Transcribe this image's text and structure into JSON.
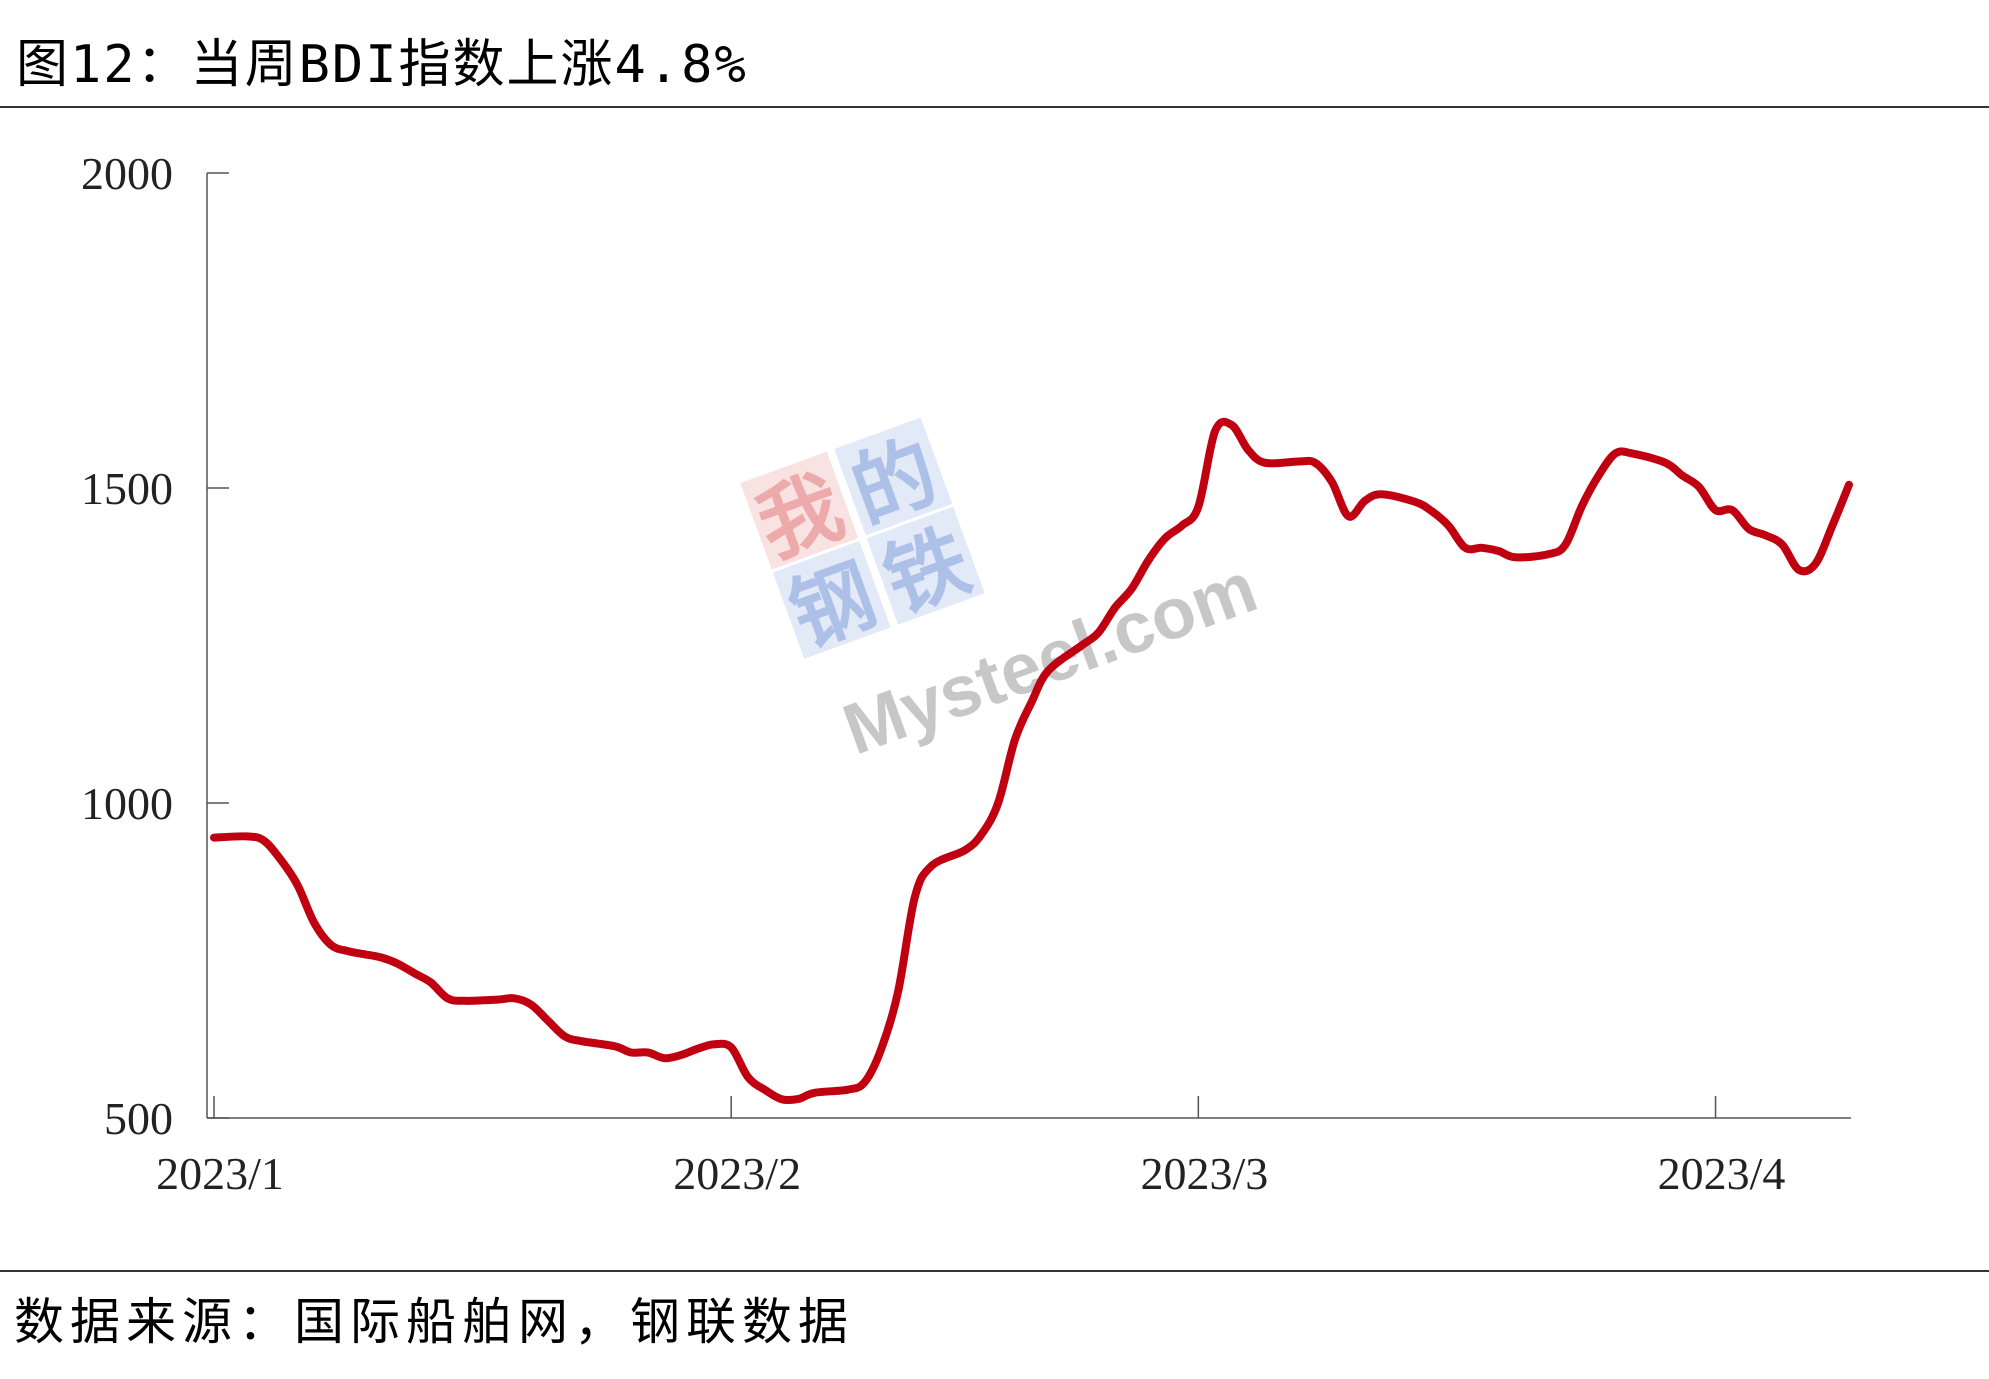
{
  "header": {
    "title": "图12：当周BDI指数上涨4.8%"
  },
  "footer": {
    "source": "数据来源：国际船舶网，钢联数据"
  },
  "watermark": {
    "chars": [
      "我",
      "的",
      "钢",
      "铁"
    ],
    "brand": "Mysteel.com",
    "colors": {
      "red": "#e06666",
      "blue": "#6b8ed6",
      "gray": "#9a9a9a"
    }
  },
  "colors": {
    "line": "#c00010",
    "axis": "#555555"
  },
  "chart_data": {
    "type": "line",
    "title": "",
    "xlabel": "",
    "ylabel": "",
    "ylim": [
      500,
      2000
    ],
    "yticks": [
      500,
      1000,
      1500,
      2000
    ],
    "xticks": [
      {
        "label": "2023/1",
        "date": "2023-01-01"
      },
      {
        "label": "2023/2",
        "date": "2023-02-01"
      },
      {
        "label": "2023/3",
        "date": "2023-03-01"
      },
      {
        "label": "2023/4",
        "date": "2023-04-01"
      }
    ],
    "xlim": [
      "2023-01-01",
      "2023-04-09"
    ],
    "grid": false,
    "series": [
      {
        "color": "#c00010",
        "points": [
          [
            "2023-01-01",
            945
          ],
          [
            "2023-01-03",
            947
          ],
          [
            "2023-01-04",
            940
          ],
          [
            "2023-01-05",
            910
          ],
          [
            "2023-01-06",
            870
          ],
          [
            "2023-01-07",
            810
          ],
          [
            "2023-01-08",
            775
          ],
          [
            "2023-01-09",
            765
          ],
          [
            "2023-01-10",
            760
          ],
          [
            "2023-01-11",
            755
          ],
          [
            "2023-01-12",
            745
          ],
          [
            "2023-01-13",
            730
          ],
          [
            "2023-01-14",
            715
          ],
          [
            "2023-01-15",
            690
          ],
          [
            "2023-01-16",
            686
          ],
          [
            "2023-01-18",
            688
          ],
          [
            "2023-01-19",
            690
          ],
          [
            "2023-01-20",
            680
          ],
          [
            "2023-01-21",
            655
          ],
          [
            "2023-01-22",
            630
          ],
          [
            "2023-01-23",
            622
          ],
          [
            "2023-01-25",
            614
          ],
          [
            "2023-01-26",
            604
          ],
          [
            "2023-01-27",
            604
          ],
          [
            "2023-01-28",
            595
          ],
          [
            "2023-01-29",
            600
          ],
          [
            "2023-01-30",
            610
          ],
          [
            "2023-01-31",
            617
          ],
          [
            "2023-02-01",
            612
          ],
          [
            "2023-02-02",
            565
          ],
          [
            "2023-02-03",
            545
          ],
          [
            "2023-02-04",
            530
          ],
          [
            "2023-02-05",
            530
          ],
          [
            "2023-02-06",
            540
          ],
          [
            "2023-02-08",
            545
          ],
          [
            "2023-02-09",
            557
          ],
          [
            "2023-02-10",
            610
          ],
          [
            "2023-02-11",
            700
          ],
          [
            "2023-02-12",
            850
          ],
          [
            "2023-02-13",
            900
          ],
          [
            "2023-02-15",
            925
          ],
          [
            "2023-02-16",
            950
          ],
          [
            "2023-02-17",
            1000
          ],
          [
            "2023-02-18",
            1100
          ],
          [
            "2023-02-19",
            1160
          ],
          [
            "2023-02-20",
            1210
          ],
          [
            "2023-02-22",
            1250
          ],
          [
            "2023-02-23",
            1270
          ],
          [
            "2023-02-24",
            1310
          ],
          [
            "2023-02-25",
            1340
          ],
          [
            "2023-02-26",
            1385
          ],
          [
            "2023-02-27",
            1420
          ],
          [
            "2023-02-28",
            1440
          ],
          [
            "2023-03-01",
            1470
          ],
          [
            "2023-03-02",
            1590
          ],
          [
            "2023-03-03",
            1600
          ],
          [
            "2023-03-04",
            1560
          ],
          [
            "2023-03-05",
            1540
          ],
          [
            "2023-03-07",
            1542
          ],
          [
            "2023-03-08",
            1540
          ],
          [
            "2023-03-09",
            1510
          ],
          [
            "2023-03-10",
            1455
          ],
          [
            "2023-03-11",
            1480
          ],
          [
            "2023-03-12",
            1490
          ],
          [
            "2023-03-14",
            1478
          ],
          [
            "2023-03-15",
            1463
          ],
          [
            "2023-03-16",
            1440
          ],
          [
            "2023-03-17",
            1405
          ],
          [
            "2023-03-18",
            1405
          ],
          [
            "2023-03-19",
            1400
          ],
          [
            "2023-03-20",
            1390
          ],
          [
            "2023-03-22",
            1395
          ],
          [
            "2023-03-23",
            1410
          ],
          [
            "2023-03-24",
            1472
          ],
          [
            "2023-03-25",
            1520
          ],
          [
            "2023-03-26",
            1555
          ],
          [
            "2023-03-27",
            1555
          ],
          [
            "2023-03-29",
            1540
          ],
          [
            "2023-03-30",
            1520
          ],
          [
            "2023-03-31",
            1502
          ],
          [
            "2023-04-01",
            1465
          ],
          [
            "2023-04-02",
            1465
          ],
          [
            "2023-04-03",
            1435
          ],
          [
            "2023-04-04",
            1425
          ],
          [
            "2023-04-05",
            1410
          ],
          [
            "2023-04-06",
            1370
          ],
          [
            "2023-04-07",
            1380
          ],
          [
            "2023-04-08",
            1440
          ],
          [
            "2023-04-09",
            1505
          ]
        ]
      }
    ]
  }
}
